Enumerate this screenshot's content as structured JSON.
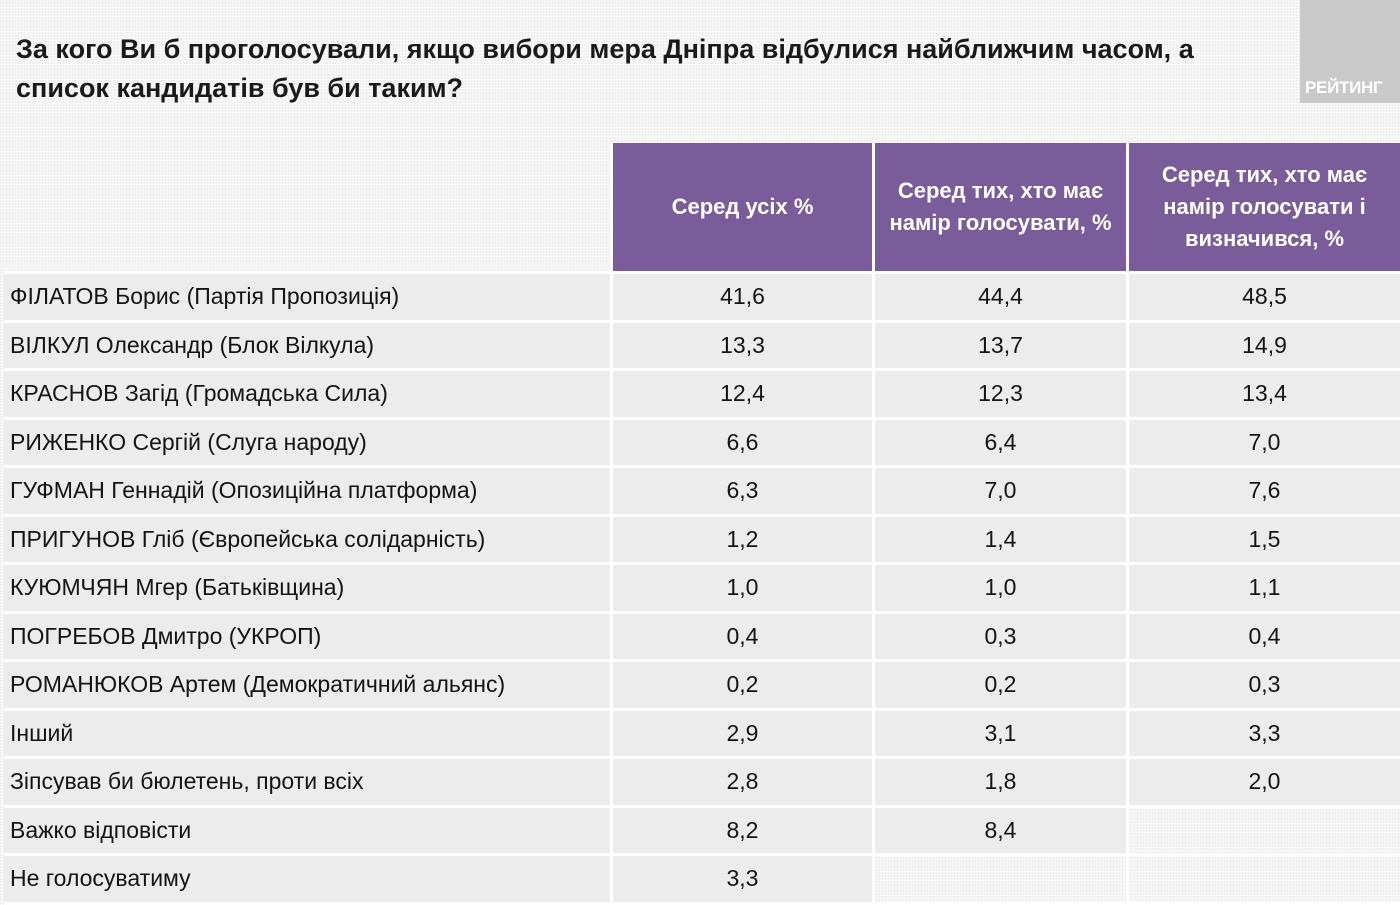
{
  "title": {
    "line1": "За кого Ви б проголосували, якщо вибори мера Дніпра відбулися найближчим часом, а",
    "line2": "список кандидатів був би таким?"
  },
  "logo_text": "РЕЙТИНГ",
  "table": {
    "headers": [
      "Серед усіх %",
      "Серед тих, хто має намір голосувати, %",
      "Серед тих, хто має намір голосувати і визначився, %"
    ],
    "rows": [
      {
        "name": "ФІЛАТОВ Борис (Партія Пропозиція)",
        "all": "41,6",
        "intend": "44,4",
        "decided": "48,5"
      },
      {
        "name": "ВІЛКУЛ Олександр (Блок Вілкула)",
        "all": "13,3",
        "intend": "13,7",
        "decided": "14,9"
      },
      {
        "name": "КРАСНОВ Загід (Громадська Сила)",
        "all": "12,4",
        "intend": "12,3",
        "decided": "13,4"
      },
      {
        "name": "РИЖЕНКО Сергій (Слуга народу)",
        "all": "6,6",
        "intend": "6,4",
        "decided": "7,0"
      },
      {
        "name": "ГУФМАН Геннадій (Опозиційна платформа)",
        "all": "6,3",
        "intend": "7,0",
        "decided": "7,6"
      },
      {
        "name": "ПРИГУНОВ Гліб (Європейська солідарність)",
        "all": "1,2",
        "intend": "1,4",
        "decided": "1,5"
      },
      {
        "name": "КУЮМЧЯН Мгер (Батьківщина)",
        "all": "1,0",
        "intend": "1,0",
        "decided": "1,1"
      },
      {
        "name": "ПОГРЕБОВ Дмитро (УКРОП)",
        "all": "0,4",
        "intend": "0,3",
        "decided": "0,4"
      },
      {
        "name": "РОМАНЮКОВ Артем (Демократичний альянс)",
        "all": "0,2",
        "intend": "0,2",
        "decided": "0,3"
      },
      {
        "name": "Інший",
        "all": "2,9",
        "intend": "3,1",
        "decided": "3,3"
      },
      {
        "name": "Зіпсував би бюлетень, проти всіх",
        "all": "2,8",
        "intend": "1,8",
        "decided": "2,0"
      },
      {
        "name": "Важко відповісти",
        "all": "8,2",
        "intend": "8,4",
        "decided": null
      },
      {
        "name": "Не голосуватиму",
        "all": "3,3",
        "intend": null,
        "decided": null
      }
    ]
  },
  "colors": {
    "header_bg": "#7b5c9b",
    "row_bg": "#ececec",
    "logo_bg": "#c9c9c9"
  }
}
